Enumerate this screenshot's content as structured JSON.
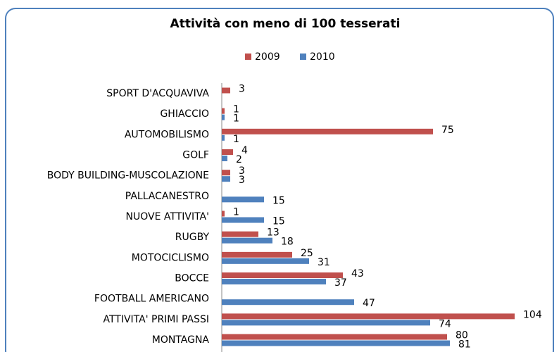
{
  "chart_data": {
    "type": "bar",
    "orientation": "horizontal",
    "title": "Attività con meno di 100 tesserati",
    "categories": [
      "SPORT D'ACQUAVIVA",
      "GHIACCIO",
      "AUTOMOBILISMO",
      "GOLF",
      "BODY BUILDING-MUSCOLAZIONE",
      "PALLACANESTRO",
      "NUOVE ATTIVITA'",
      "RUGBY",
      "MOTOCICLISMO",
      "BOCCE",
      "FOOTBALL AMERICANO",
      "ATTIVITA' PRIMI PASSI",
      "MONTAGNA"
    ],
    "series": [
      {
        "name": "2009",
        "color": "#c0504d",
        "values": [
          3,
          1,
          75,
          4,
          3,
          null,
          1,
          13,
          25,
          43,
          null,
          104,
          80
        ]
      },
      {
        "name": "2010",
        "color": "#4f81bd",
        "values": [
          null,
          1,
          1,
          2,
          3,
          15,
          15,
          18,
          31,
          37,
          47,
          74,
          81
        ]
      }
    ],
    "xlim": [
      0,
      115
    ],
    "legend": "top"
  }
}
